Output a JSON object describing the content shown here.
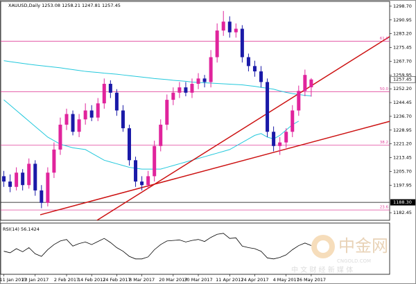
{
  "chart_data": {
    "type": "candlestick",
    "title": "XAUUSD,Daily 1253.08 1258.21 1247.81 1257.45",
    "bull_color": "#e0249c",
    "bear_color": "#1a1aa8",
    "categories": [
      null,
      null,
      null,
      null,
      null,
      null,
      null,
      null,
      null,
      null,
      null,
      null,
      null,
      null,
      null,
      null,
      null,
      null,
      null,
      null,
      null,
      null,
      null,
      null,
      null,
      null,
      null,
      null,
      null,
      null,
      null,
      null,
      null,
      null,
      null,
      null,
      null,
      null,
      null,
      null,
      null,
      null,
      null,
      null,
      null,
      null,
      null,
      null,
      null,
      null
    ],
    "open": [
      1203,
      1200,
      1197,
      1205,
      1198,
      1210,
      1195,
      1188,
      1205,
      1218,
      1232,
      1238,
      1228,
      1235,
      1240,
      1236,
      1244,
      1255,
      1250,
      1240,
      1230,
      1212,
      1200,
      1198,
      1203,
      1220,
      1232,
      1246,
      1250,
      1253,
      1250,
      1255,
      1258,
      1256,
      1270,
      1285,
      1290,
      1284,
      1286,
      1270,
      1265,
      1262,
      1256,
      1228,
      1220,
      1222,
      1228,
      1240,
      1251,
      1253.08
    ],
    "high": [
      1206,
      1204,
      1208,
      1207,
      1213,
      1212,
      1198,
      1208,
      1222,
      1236,
      1241,
      1240,
      1238,
      1244,
      1243,
      1247,
      1258,
      1257,
      1252,
      1243,
      1232,
      1214,
      1203,
      1206,
      1223,
      1235,
      1249,
      1253,
      1256,
      1256,
      1258,
      1261,
      1260,
      1274,
      1289,
      1296,
      1293,
      1289,
      1288,
      1272,
      1268,
      1265,
      1258,
      1231,
      1225,
      1230,
      1243,
      1254,
      1263,
      1258.21
    ],
    "low": [
      1197,
      1194,
      1195,
      1195,
      1196,
      1192,
      1185,
      1186,
      1202,
      1215,
      1229,
      1226,
      1225,
      1232,
      1234,
      1234,
      1241,
      1247,
      1237,
      1228,
      1209,
      1197,
      1195,
      1196,
      1200,
      1217,
      1229,
      1243,
      1247,
      1248,
      1247,
      1252,
      1253,
      1253,
      1267,
      1282,
      1281,
      1281,
      1267,
      1262,
      1259,
      1253,
      1225,
      1217,
      1215,
      1219,
      1225,
      1237,
      1248,
      1247.81
    ],
    "close": [
      1200,
      1197,
      1205,
      1198,
      1210,
      1195,
      1188,
      1205,
      1218,
      1232,
      1238,
      1228,
      1235,
      1240,
      1236,
      1244,
      1255,
      1250,
      1240,
      1230,
      1212,
      1200,
      1198,
      1203,
      1220,
      1232,
      1246,
      1250,
      1253,
      1250,
      1255,
      1258,
      1256,
      1270,
      1285,
      1290,
      1284,
      1286,
      1270,
      1265,
      1262,
      1256,
      1228,
      1220,
      1222,
      1228,
      1240,
      1251,
      1260,
      1257.45
    ],
    "moving_averages": [
      {
        "color": "#22c8dc",
        "values": [
          1268,
          1267.5,
          1267,
          1266.5,
          1266,
          1265.6,
          1265.2,
          1264.8,
          1264.4,
          1264,
          1263.5,
          1263,
          1262.5,
          1262,
          1261.7,
          1261.4,
          1261,
          1260.7,
          1260.4,
          1260,
          1259.6,
          1259.2,
          1258.8,
          1258.4,
          1258,
          1257.7,
          1257.4,
          1257,
          1256.7,
          1256.4,
          1256,
          1255.8,
          1255.6,
          1255.4,
          1255.2,
          1255,
          1254.8,
          1254.6,
          1254.4,
          1254,
          1253.6,
          1253,
          1252.5,
          1252,
          1251,
          1250.2,
          1249.5,
          1249,
          1248.5,
          1248.2
        ]
      },
      {
        "color": "#22c8dc",
        "values": [
          1246,
          1243,
          1240,
          1237,
          1234,
          1231,
          1228,
          1225,
          1223,
          1221,
          1220,
          1219,
          1218.5,
          1218,
          1216,
          1214,
          1212,
          1211,
          1210,
          1209,
          1208,
          1207.5,
          1207,
          1207,
          1207,
          1207,
          1208,
          1209,
          1210,
          1211,
          1212,
          1213,
          1214,
          1215,
          1216,
          1217,
          1218,
          1220,
          1222,
          1224,
          1226,
          1227,
          1225,
          1224,
          1226,
          1229,
          1232,
          1234,
          null,
          null
        ]
      }
    ],
    "trendlines": [
      {
        "color": "#cc1111",
        "x": [
          13.6,
          63
        ],
        "y": [
          1175.4,
          1284.9
        ]
      },
      {
        "color": "#cc1111",
        "x": [
          5.8,
          63
        ],
        "y": [
          1181.3,
          1235.3
        ]
      }
    ],
    "levels": [
      {
        "value": 1279,
        "label": "61.8",
        "color": "#e0449c"
      },
      {
        "value": 1250.6,
        "label": "50.0",
        "color": "#e0449c"
      },
      {
        "value": 1220.5,
        "label": "38.2",
        "color": "#e0449c"
      },
      {
        "value": 1184,
        "label": "23.6",
        "color": "#e0449c"
      }
    ],
    "marked_price": {
      "value": 1188.3,
      "label": "1188.30"
    },
    "last_price": {
      "value": 1257.45,
      "label": "1257.45"
    },
    "xlim": [
      -0.5,
      61.5
    ],
    "xticks": [
      {
        "value": 0,
        "label": "11 Jan 2017"
      },
      {
        "value": 5,
        "label": "23 Jan 2017"
      },
      {
        "value": 10,
        "label": "2 Feb 2017"
      },
      {
        "value": 14,
        "label": "14 Feb 2017"
      },
      {
        "value": 18,
        "label": "24 Feb 2017"
      },
      {
        "value": 22,
        "label": "8 Mar 2017"
      },
      {
        "value": 27,
        "label": "20 Mar 2017"
      },
      {
        "value": 31,
        "label": "30 Mar 2017"
      },
      {
        "value": 36,
        "label": "11 Apr 2017"
      },
      {
        "value": 40,
        "label": "24 Apr 2017"
      },
      {
        "value": 45,
        "label": "4 May 2017"
      },
      {
        "value": 49,
        "label": "16 May 2017"
      }
    ],
    "ylim": [
      1178.2,
      1301.4
    ],
    "yticks": [
      {
        "value": 1298.7,
        "label": "1298.70"
      },
      {
        "value": 1290.95,
        "label": "1290.95"
      },
      {
        "value": 1283.2,
        "label": "1283.20"
      },
      {
        "value": 1275.45,
        "label": "1275.45"
      },
      {
        "value": 1267.7,
        "label": "1267.70"
      },
      {
        "value": 1259.95,
        "label": "1259.95"
      },
      {
        "value": 1252.2,
        "label": "1252.20"
      },
      {
        "value": 1244.45,
        "label": "1244.45"
      },
      {
        "value": 1236.7,
        "label": "1236.70"
      },
      {
        "value": 1228.95,
        "label": "1228.95"
      },
      {
        "value": 1221.2,
        "label": "1221.20"
      },
      {
        "value": 1213.45,
        "label": "1213.45"
      },
      {
        "value": 1205.7,
        "label": "1205.70"
      },
      {
        "value": 1197.95,
        "label": "1197.95"
      },
      {
        "value": 1182.45,
        "label": "1182.45"
      }
    ],
    "rsi": {
      "title": "RSI(14) 56.1424",
      "color": "#000000",
      "ylim": [
        0,
        100
      ],
      "values": [
        45,
        42,
        50,
        44,
        52,
        40,
        35,
        48,
        58,
        65,
        68,
        55,
        60,
        63,
        58,
        64,
        70,
        62,
        52,
        45,
        35,
        30,
        30,
        34,
        48,
        58,
        65,
        66,
        67,
        63,
        66,
        68,
        64,
        72,
        78,
        80,
        70,
        71,
        55,
        52,
        50,
        45,
        32,
        30,
        33,
        38,
        48,
        56,
        61,
        56.14
      ]
    },
    "watermark": {
      "brand": "中金网",
      "site": "CNGOLD.COM",
      "slogan": "中 文 财 经 新 媒 体"
    }
  }
}
